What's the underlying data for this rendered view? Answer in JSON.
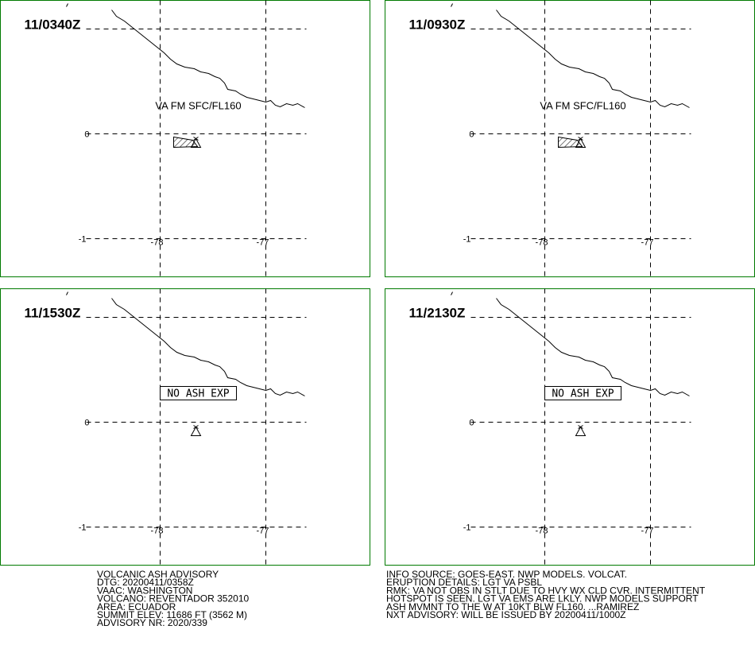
{
  "panels": [
    {
      "time": "11/0340Z",
      "annotation": "VA FM SFC/FL160",
      "boxed": false
    },
    {
      "time": "11/0930Z",
      "annotation": "VA FM SFC/FL160",
      "boxed": false
    },
    {
      "time": "11/1530Z",
      "annotation": "NO ASH EXP",
      "boxed": true
    },
    {
      "time": "11/2130Z",
      "annotation": "NO ASH EXP",
      "boxed": true
    }
  ],
  "grid": {
    "lat_labels": [
      "0",
      "-1"
    ],
    "lon_labels": [
      "-78",
      "-77"
    ]
  },
  "footer": {
    "left": [
      "VOLCANIC ASH ADVISORY",
      "DTG: 20200411/0358Z",
      "VAAC: WASHINGTON",
      "VOLCANO: REVENTADOR 352010",
      "AREA: ECUADOR",
      "SUMMIT ELEV: 11686 FT (3562 M)",
      "ADVISORY NR: 2020/339"
    ],
    "right": [
      "INFO SOURCE: GOES-EAST. NWP MODELS. VOLCAT.",
      "ERUPTION DETAILS: LGT VA PSBL",
      "RMK: VA NOT OBS IN STLT DUE TO HVY WX CLD CVR. INTERMITTENT",
      "HOTSPOT IS SEEN. LGT VA EMS ARE LKLY. NWP MODELS SUPPORT",
      "ASH MVMNT TO THE W AT 10KT BLW FL160. ...RAMIREZ",
      "NXT ADVISORY: WILL BE ISSUED BY 20200411/1000Z"
    ]
  }
}
